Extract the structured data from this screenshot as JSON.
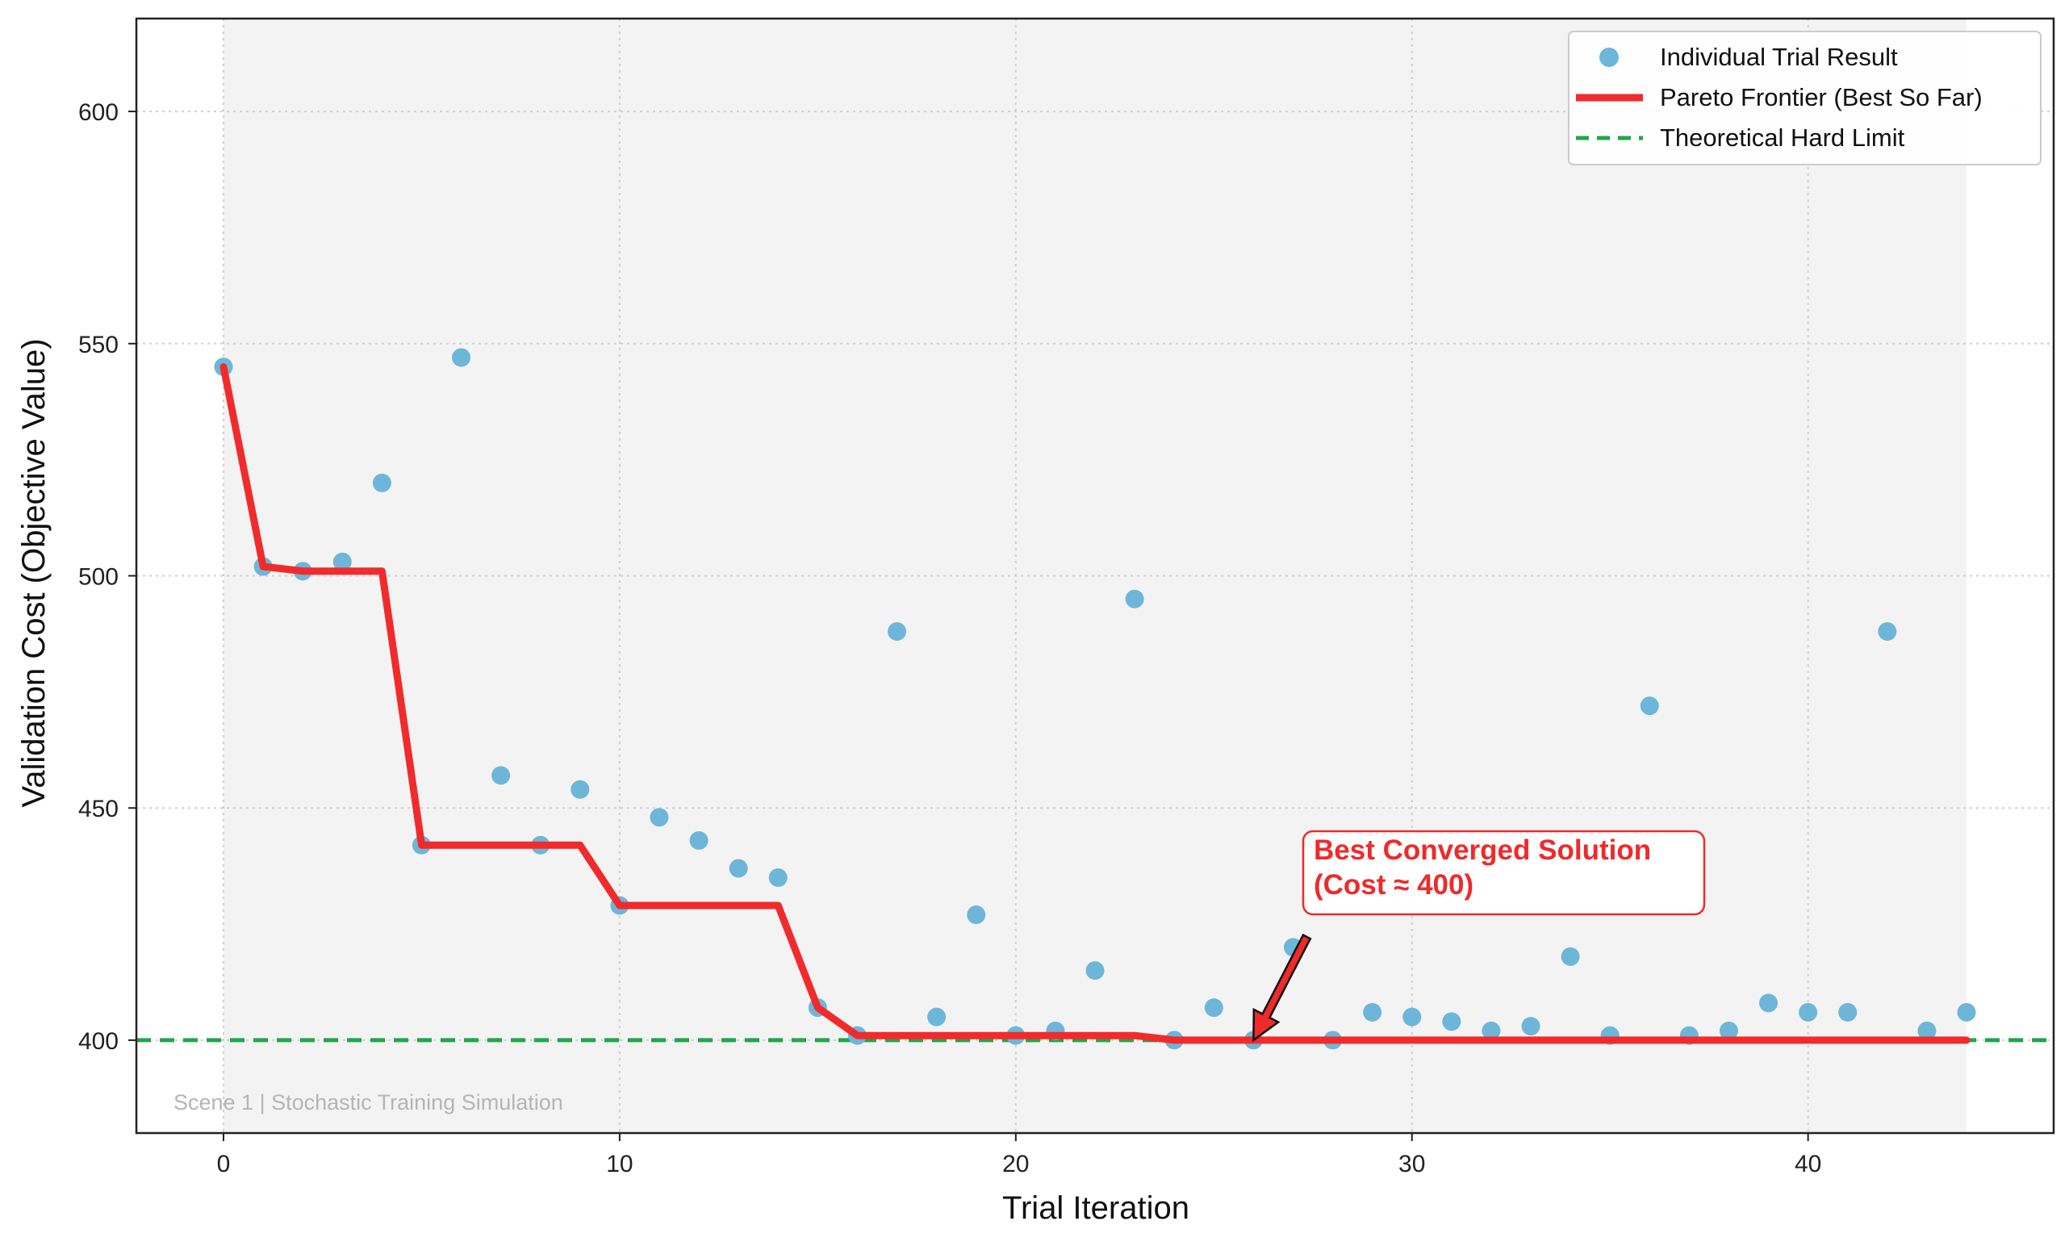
{
  "chart_data": {
    "type": "scatter",
    "xlabel": "Trial Iteration",
    "ylabel": "Validation Cost (Objective Value)",
    "xlim": [
      -2.2,
      46.2
    ],
    "ylim": [
      380,
      620
    ],
    "xticks": [
      0,
      10,
      20,
      30,
      40
    ],
    "yticks": [
      400,
      450,
      500,
      550,
      600
    ],
    "grid": true,
    "legend_position": "top-right",
    "series": [
      {
        "name": "Individual Trial Result",
        "kind": "scatter",
        "color": "#6db6d9",
        "x": [
          0,
          1,
          2,
          3,
          4,
          5,
          6,
          7,
          8,
          9,
          10,
          11,
          12,
          13,
          14,
          15,
          16,
          17,
          18,
          19,
          20,
          21,
          22,
          23,
          24,
          25,
          26,
          27,
          28,
          29,
          30,
          31,
          32,
          33,
          34,
          35,
          36,
          37,
          38,
          39,
          40,
          41,
          42,
          43,
          44
        ],
        "y": [
          545,
          502,
          501,
          503,
          520,
          442,
          547,
          457,
          442,
          454,
          429,
          448,
          443,
          437,
          435,
          407,
          401,
          488,
          405,
          427,
          401,
          402,
          415,
          495,
          400,
          407,
          400,
          420,
          400,
          406,
          405,
          404,
          402,
          403,
          418,
          401,
          472,
          401,
          402,
          408,
          406,
          406,
          488,
          402,
          406
        ]
      },
      {
        "name": "Pareto Frontier (Best So Far)",
        "kind": "line",
        "color": "#f12b2b",
        "x": [
          0,
          1,
          2,
          3,
          4,
          5,
          6,
          7,
          8,
          9,
          10,
          11,
          12,
          13,
          14,
          15,
          16,
          17,
          18,
          19,
          20,
          21,
          22,
          23,
          24,
          25,
          26,
          27,
          28,
          29,
          30,
          31,
          32,
          33,
          34,
          35,
          36,
          37,
          38,
          39,
          40,
          41,
          42,
          43,
          44
        ],
        "y": [
          545,
          502,
          501,
          501,
          501,
          442,
          442,
          442,
          442,
          442,
          429,
          429,
          429,
          429,
          429,
          407,
          401,
          401,
          401,
          401,
          401,
          401,
          401,
          401,
          400,
          400,
          400,
          400,
          400,
          400,
          400,
          400,
          400,
          400,
          400,
          400,
          400,
          400,
          400,
          400,
          400,
          400,
          400,
          400,
          400
        ]
      },
      {
        "name": "Theoretical Hard Limit",
        "kind": "hline",
        "color": "#1fa64a",
        "y": 400
      }
    ],
    "annotation": {
      "line1": "Best Converged Solution",
      "line2": "(Cost ≈ 400)",
      "target_x": 26,
      "target_y": 400,
      "color": "#ee2a2a"
    },
    "watermark": "Scene 1 | Stochastic Training Simulation",
    "shaded_x_range": [
      0,
      44
    ],
    "colors": {
      "shade": "#f3f3f3",
      "grid": "#cfcfcf",
      "axis": "#222222"
    }
  }
}
